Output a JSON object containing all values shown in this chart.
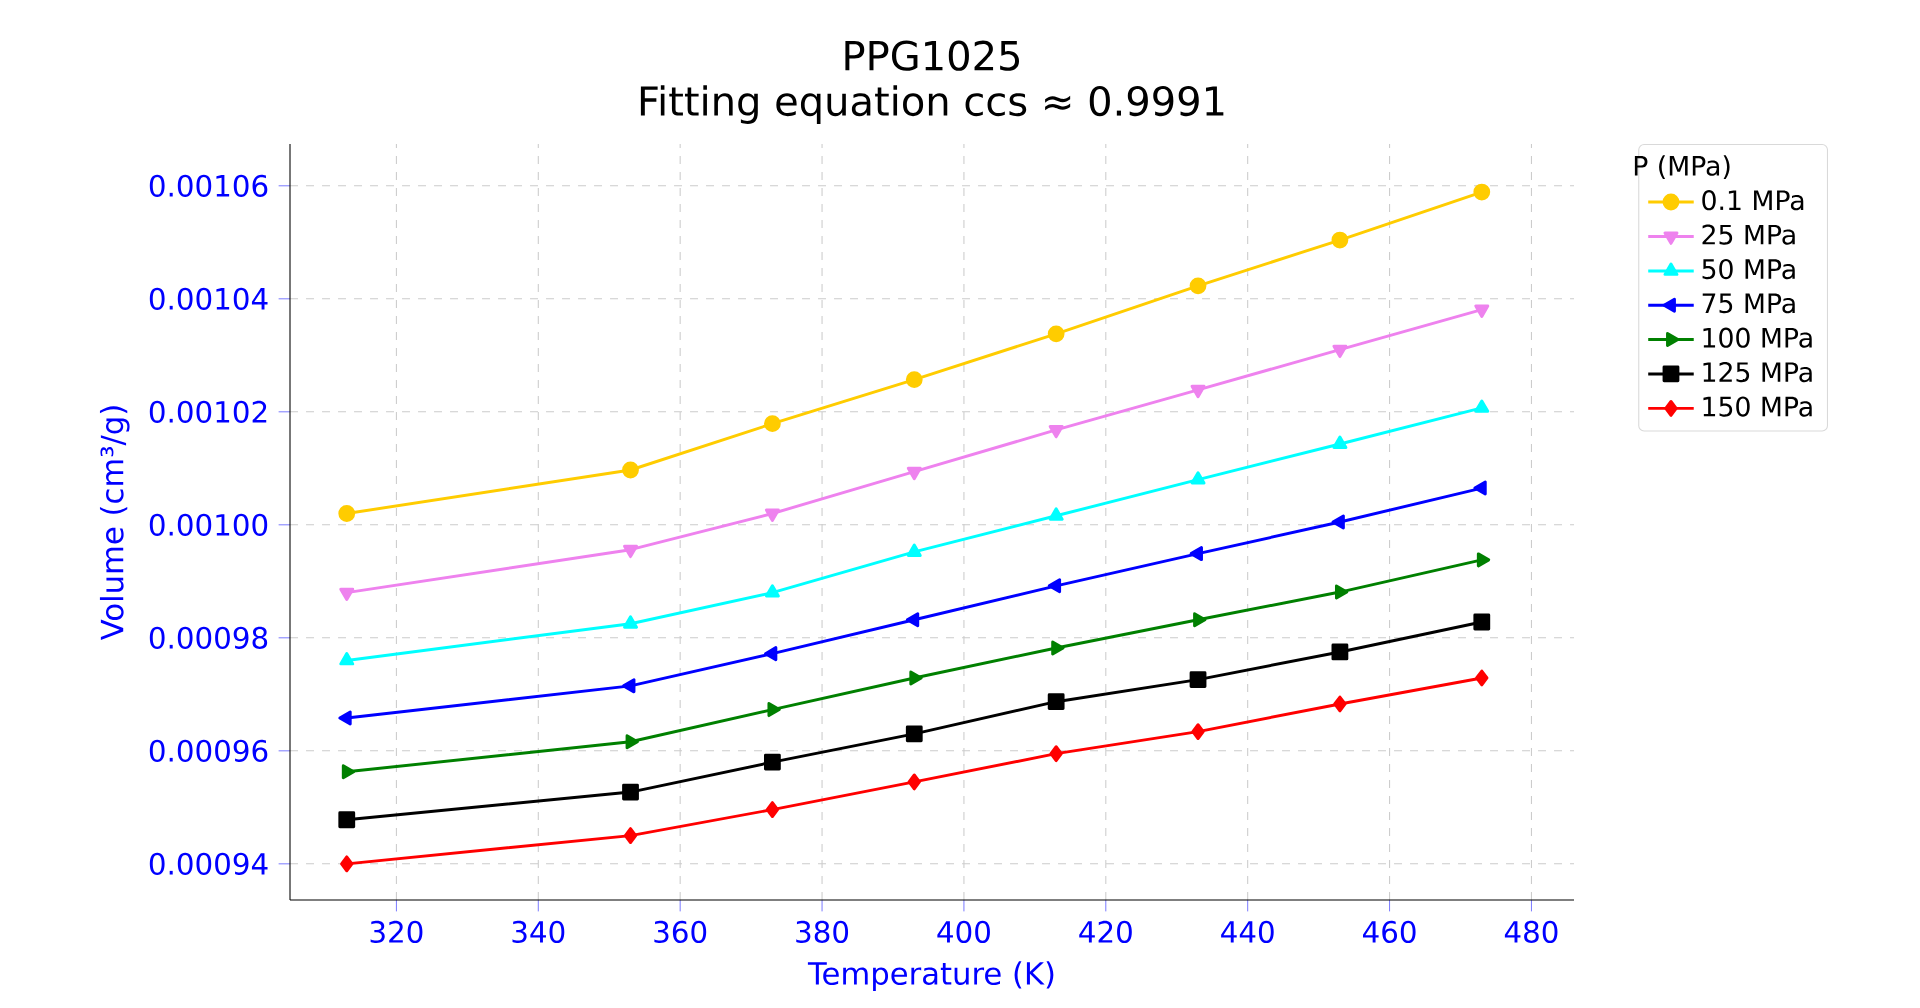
{
  "chart_data": {
    "type": "line",
    "title": "PPG1025",
    "subtitle": "Fitting equation    ccs ≈ 0.9991",
    "xlabel": "Temperature (K)",
    "ylabel": "Volume (cm³/g)",
    "legend_title": "P (MPa)",
    "x": [
      313,
      353,
      373,
      393,
      413,
      433,
      453,
      473
    ],
    "series": [
      {
        "name": "0.1 MPa",
        "color": "#ffcc00",
        "marker": "circle",
        "values": [
          0.001002,
          0.0010097,
          0.0010179,
          0.0010257,
          0.0010338,
          0.0010423,
          0.0010504,
          0.0010589
        ]
      },
      {
        "name": "25 MPa",
        "color": "#ee82ee",
        "marker": "triangle_down",
        "values": [
          0.000988,
          0.0009956,
          0.001002,
          0.0010094,
          0.0010168,
          0.0010239,
          0.001031,
          0.0010381
        ]
      },
      {
        "name": "50 MPa",
        "color": "#00ffff",
        "marker": "triangle",
        "values": [
          0.000976,
          0.0009825,
          0.000988,
          0.0009952,
          0.0010016,
          0.001008,
          0.0010143,
          0.0010207
        ]
      },
      {
        "name": "75 MPa",
        "color": "#0000ff",
        "marker": "triangle_left",
        "values": [
          0.0009658,
          0.0009715,
          0.0009772,
          0.0009832,
          0.0009892,
          0.0009949,
          0.0010005,
          0.0010065
        ]
      },
      {
        "name": "100 MPa",
        "color": "#008000",
        "marker": "triangle_right",
        "values": [
          0.0009563,
          0.0009616,
          0.0009673,
          0.0009729,
          0.0009782,
          0.0009832,
          0.0009881,
          0.0009938
        ]
      },
      {
        "name": "125 MPa",
        "color": "#000000",
        "marker": "square",
        "values": [
          0.0009478,
          0.0009527,
          0.000958,
          0.000963,
          0.0009687,
          0.0009726,
          0.0009775,
          0.0009828
        ]
      },
      {
        "name": "150 MPa",
        "color": "#ff0000",
        "marker": "diamond",
        "values": [
          0.00094,
          0.000945,
          0.0009496,
          0.0009545,
          0.0009595,
          0.0009634,
          0.0009683,
          0.0009729
        ]
      }
    ],
    "xlim": [
      305,
      486
    ],
    "ylim": [
      0.0009336,
      0.0010674
    ],
    "xticks": [
      320,
      340,
      360,
      380,
      400,
      420,
      440,
      460,
      480
    ],
    "yticks": [
      0.00094,
      0.00096,
      0.00098,
      {
        "value": 0.001,
        "label": "0.00100"
      },
      0.00102,
      0.00104,
      0.00106
    ],
    "grid": true,
    "legend": "top right",
    "line_style": "solid"
  }
}
